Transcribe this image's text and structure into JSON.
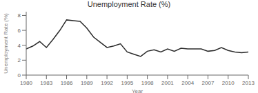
{
  "chart_data": {
    "type": "line",
    "title": "Unemployment Rate (%)",
    "xlabel": "Year",
    "ylabel": "Unemployment Rate (%)",
    "x": [
      1980,
      1981,
      1982,
      1983,
      1984,
      1985,
      1986,
      1987,
      1988,
      1989,
      1990,
      1991,
      1992,
      1993,
      1994,
      1995,
      1996,
      1997,
      1998,
      1999,
      2000,
      2001,
      2002,
      2003,
      2004,
      2005,
      2006,
      2007,
      2008,
      2009,
      2010,
      2011,
      2012,
      2013
    ],
    "values": [
      3.5,
      3.9,
      4.5,
      3.7,
      4.8,
      6.0,
      7.4,
      7.3,
      7.2,
      6.3,
      5.1,
      4.4,
      3.7,
      3.9,
      4.2,
      3.1,
      2.8,
      2.5,
      3.2,
      3.4,
      3.1,
      3.5,
      3.2,
      3.6,
      3.5,
      3.5,
      3.5,
      3.2,
      3.3,
      3.7,
      3.3,
      3.1,
      3.0,
      3.1
    ],
    "color": "#2b2b2b",
    "xlim": [
      1980,
      2013
    ],
    "xticks": [
      1980,
      1983,
      1986,
      1989,
      1992,
      1995,
      1998,
      2001,
      2004,
      2007,
      2010,
      2013
    ],
    "ylim": [
      0,
      8.5
    ],
    "yticks": [
      0,
      2,
      4,
      6,
      8
    ],
    "grid": false
  }
}
